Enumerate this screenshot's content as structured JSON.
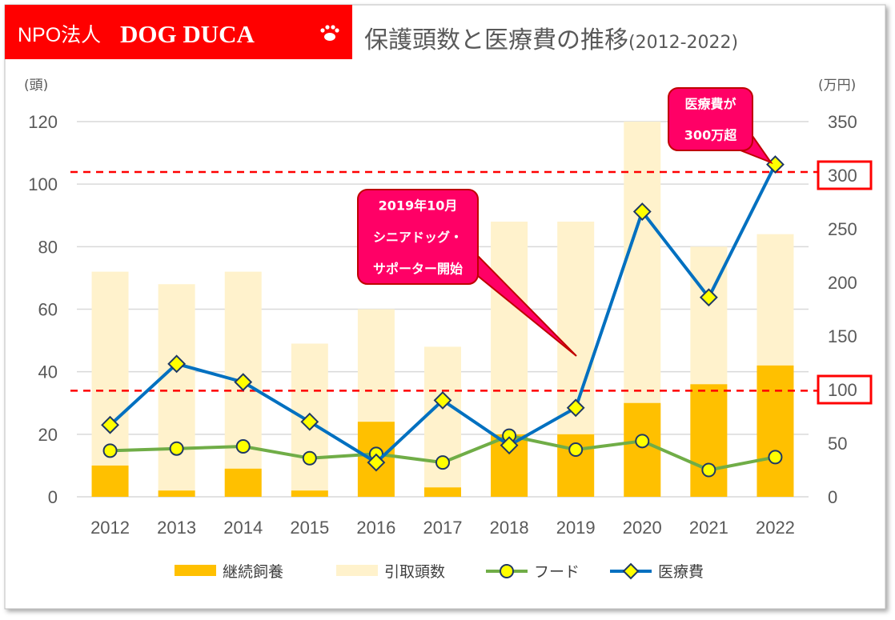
{
  "logo": {
    "prefix": "NPO法人",
    "name": "DOG DUCA"
  },
  "chart_data": {
    "type": "bar+line",
    "title": "保護頭数と医療費の推移",
    "subtitle": "(2012-2022)",
    "categories": [
      "2012",
      "2013",
      "2014",
      "2015",
      "2016",
      "2017",
      "2018",
      "2019",
      "2020",
      "2021",
      "2022"
    ],
    "left_axis": {
      "unit": "(頭)",
      "ylim": [
        0,
        120
      ],
      "ticks": [
        0,
        20,
        40,
        60,
        80,
        100,
        120
      ]
    },
    "right_axis": {
      "unit": "(万円)",
      "ylim": [
        0,
        350
      ],
      "ticks": [
        0,
        50,
        100,
        150,
        200,
        250,
        300,
        350
      ]
    },
    "series": [
      {
        "name": "継続飼養",
        "type": "bar",
        "axis": "left",
        "color": "#FFC000",
        "values": [
          10,
          2,
          9,
          2,
          24,
          3,
          20,
          20,
          30,
          36,
          42
        ]
      },
      {
        "name": "引取頭数",
        "type": "bar",
        "axis": "left",
        "color": "#FFF2CC",
        "values": [
          72,
          68,
          72,
          49,
          60,
          48,
          88,
          88,
          120,
          80,
          84
        ]
      },
      {
        "name": "フード",
        "type": "line",
        "axis": "right",
        "color": "#70AD47",
        "marker": "circle",
        "values": [
          43,
          45,
          47,
          36,
          40,
          32,
          57,
          44,
          52,
          25,
          37
        ]
      },
      {
        "name": "医療費",
        "type": "line",
        "axis": "right",
        "color": "#0070C0",
        "marker": "diamond",
        "values": [
          67,
          124,
          107,
          70,
          32,
          90,
          48,
          83,
          266,
          186,
          310
        ]
      }
    ],
    "reference_lines": [
      {
        "axis": "right",
        "value": 303,
        "color": "#FF0000"
      },
      {
        "axis": "right",
        "value": 99,
        "color": "#FF0000"
      }
    ],
    "highlighted_ticks": [
      300,
      100
    ],
    "annotations": [
      {
        "lines": [
          "2019年10月",
          "シニアドッグ・",
          "サポーター開始"
        ],
        "category": "2019"
      },
      {
        "lines": [
          "医療費が",
          "300万超"
        ],
        "category": "2022"
      }
    ],
    "grid": true,
    "legend": "bottom"
  }
}
